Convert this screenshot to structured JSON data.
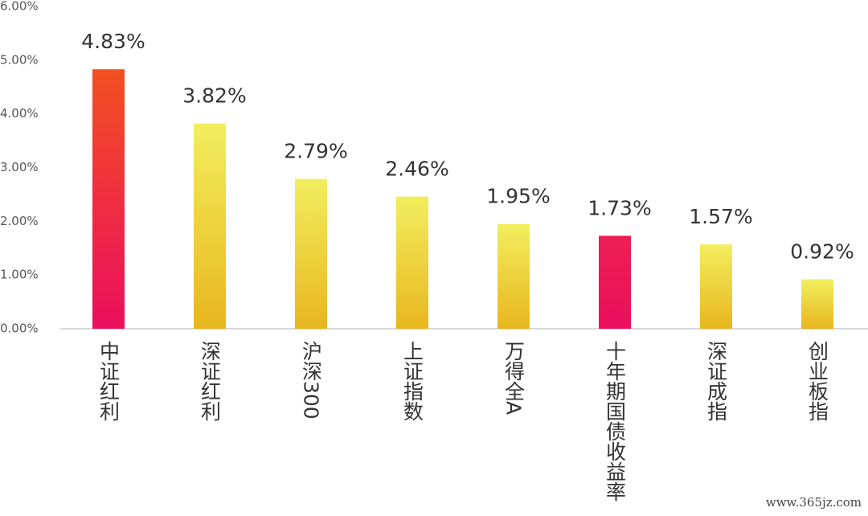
{
  "chart_data": {
    "type": "bar",
    "categories": [
      "中证红利",
      "深证红利",
      "沪深300",
      "上证指数",
      "万得全A",
      "十年期国债收益率",
      "深证成指",
      "创业板指"
    ],
    "values": [
      4.83,
      3.82,
      2.79,
      2.46,
      1.95,
      1.73,
      1.57,
      0.92
    ],
    "value_labels": [
      "4.83%",
      "3.82%",
      "2.79%",
      "2.46%",
      "1.95%",
      "1.73%",
      "1.57%",
      "0.92%"
    ],
    "colors": [
      [
        "#f25022",
        "#ec0e5e"
      ],
      [
        "#f2ee5e",
        "#e8b61e"
      ],
      [
        "#f2ee5e",
        "#e8b61e"
      ],
      [
        "#f2ee5e",
        "#e8b61e"
      ],
      [
        "#f2ee5e",
        "#e8b61e"
      ],
      [
        "#ec1f52",
        "#ec0e5e"
      ],
      [
        "#f2ee5e",
        "#e8b61e"
      ],
      [
        "#f2ee5e",
        "#e8b61e"
      ]
    ],
    "ylim": [
      0,
      6
    ],
    "yticks": [
      {
        "value": 0,
        "label": "0.00%"
      },
      {
        "value": 1,
        "label": "1.00%"
      },
      {
        "value": 2,
        "label": "2.00%"
      },
      {
        "value": 3,
        "label": "3.00%"
      },
      {
        "value": 4,
        "label": "4.00%"
      },
      {
        "value": 5,
        "label": "5.00%"
      },
      {
        "value": 6,
        "label": "6.00%"
      }
    ],
    "watermark": "www.365jz.com"
  }
}
